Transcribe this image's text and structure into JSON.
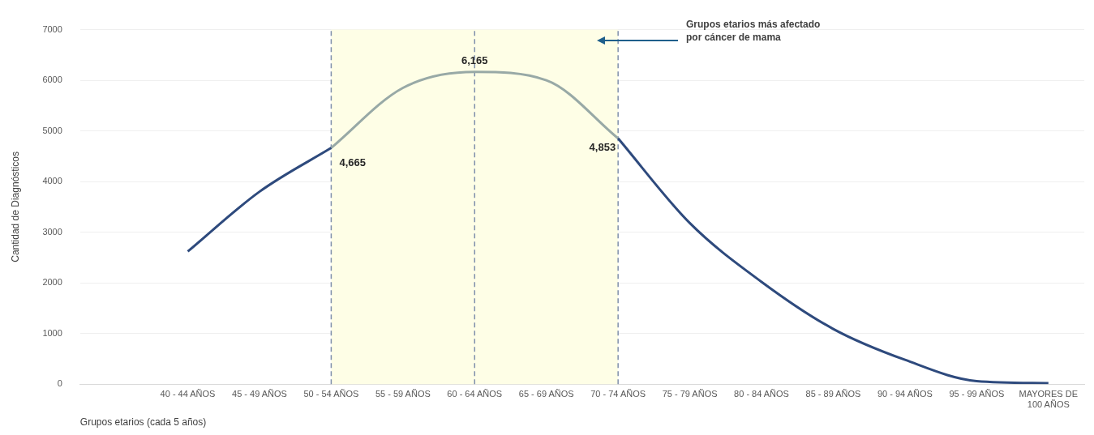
{
  "chart_data": {
    "type": "line",
    "xlabel": "Grupos etarios (cada 5 años)",
    "ylabel": "Cantidad de Diagnósticos",
    "categories": [
      null,
      "40 - 44 AÑOS",
      "45 - 49 AÑOS",
      "50 - 54 AÑOS",
      "55 - 59 AÑOS",
      "60 - 64 AÑOS",
      "65 - 69 AÑOS",
      "70 - 74 AÑOS",
      "75 - 79 AÑOS",
      "80 - 84 AÑOS",
      "85 - 89 AÑOS",
      "90 - 94 AÑOS",
      "95 - 99 AÑOS",
      "MAYORES DE 100 AÑOS"
    ],
    "series": [
      {
        "color": "#2e4a7d",
        "values": [
          null,
          2620,
          3800,
          4665,
          null,
          null,
          null,
          4853,
          3180,
          2020,
          1090,
          480,
          60,
          20
        ]
      },
      {
        "color": "#98a9a6",
        "values": [
          null,
          null,
          null,
          4665,
          5850,
          6165,
          6000,
          4853,
          null,
          null,
          null,
          null,
          null,
          null
        ],
        "value_labels": [
          null,
          null,
          null,
          "4,665",
          null,
          "6,165",
          null,
          "4,853",
          null,
          null,
          null,
          null,
          null,
          null
        ]
      }
    ],
    "ylim": [
      0,
      7000
    ],
    "yticks": [
      0,
      1000,
      2000,
      3000,
      4000,
      5000,
      6000,
      7000
    ],
    "grid": "y",
    "legend": false,
    "marker": "none",
    "line_style": "solid",
    "bands": [
      {
        "axis": "x",
        "from": "50 - 54 AÑOS",
        "to": "70 - 74 AÑOS",
        "color": "#fefee6"
      }
    ],
    "ref_lines": [
      {
        "axis": "x",
        "value": "50 - 54 AÑOS",
        "color": "#7f8fab",
        "line_style": "dashed"
      },
      {
        "axis": "x",
        "value": "60 - 64 AÑOS",
        "color": "#7f8fab",
        "line_style": "dashed"
      },
      {
        "axis": "x",
        "value": "70 - 74 AÑOS",
        "color": "#7f8fab",
        "line_style": "dashed"
      }
    ],
    "annotations": [
      "Grupos etarios más afectado por cáncer de mama"
    ]
  }
}
